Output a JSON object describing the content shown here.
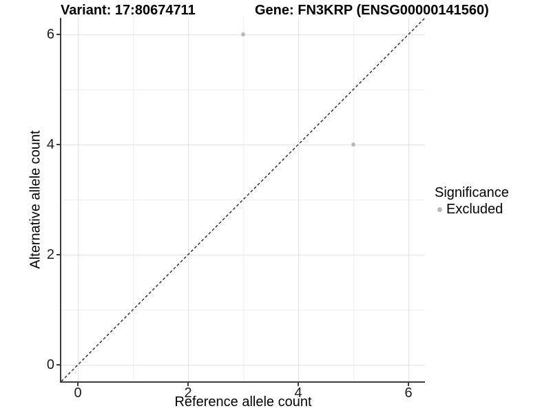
{
  "titles": {
    "left": "Variant: 17:80674711",
    "right": "Gene: FN3KRP (ENSG00000141560)"
  },
  "chart_data": {
    "type": "scatter",
    "xlabel": "Reference allele count",
    "ylabel": "Alternative allele count",
    "xlim": [
      -0.3,
      6.3
    ],
    "ylim": [
      -0.3,
      6.3
    ],
    "x_major_ticks": [
      0,
      2,
      4,
      6
    ],
    "y_major_ticks": [
      0,
      2,
      4,
      6
    ],
    "x_minor_ticks": [
      1,
      3,
      5
    ],
    "y_minor_ticks": [
      1,
      3,
      5
    ],
    "grid": true,
    "series": [
      {
        "name": "Excluded",
        "color": "#b9b9b9",
        "points": [
          {
            "x": 3,
            "y": 6
          },
          {
            "x": 5,
            "y": 4
          }
        ]
      }
    ],
    "reference_line": {
      "type": "identity",
      "from": [
        -0.3,
        -0.3
      ],
      "to": [
        6.3,
        6.3
      ],
      "style": "dashed",
      "color": "#111111"
    },
    "legend": {
      "title": "Significance",
      "position": "right",
      "items": [
        {
          "label": "Excluded",
          "color": "#b9b9b9"
        }
      ]
    }
  },
  "colors": {
    "background": "#ffffff",
    "grid_major": "#e3e3e3",
    "grid_minor": "#f0f0f0",
    "axis": "#3c3c3c",
    "point": "#b9b9b9"
  }
}
